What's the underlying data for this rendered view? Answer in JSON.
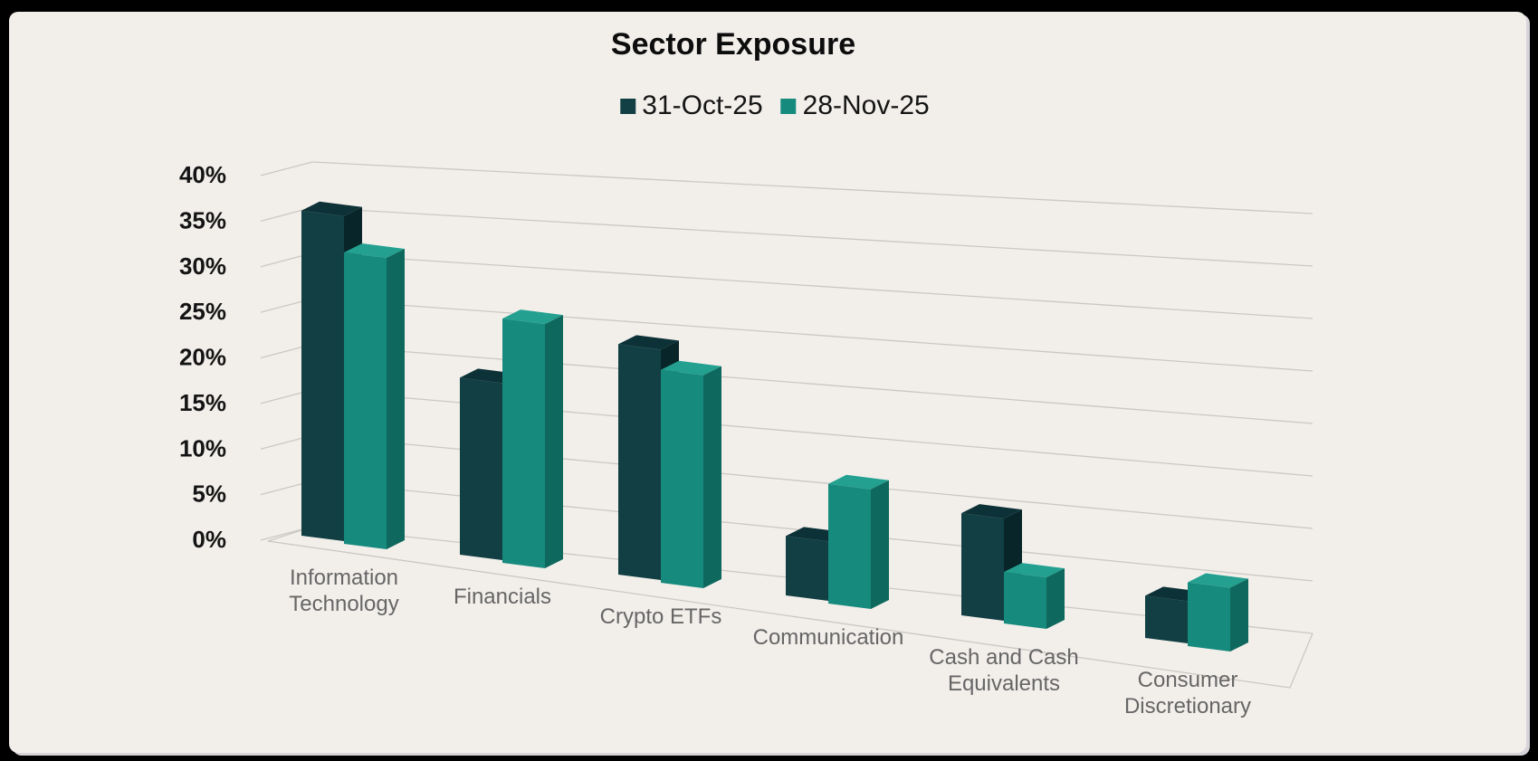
{
  "page": {
    "frame_color": "#000000",
    "card_background": "#f2efeb",
    "gridline_color": "#cbc8c3",
    "axis_label_color": "#141414",
    "category_label_color": "#666666"
  },
  "chart_data": {
    "type": "bar",
    "style": "3d-clustered-column",
    "title": "Sector Exposure",
    "categories": [
      "Information Technology",
      "Financials",
      "Crypto ETFs",
      "Communication",
      "Cash and Cash Equivalents",
      "Consumer Discretionary"
    ],
    "series": [
      {
        "name": "31-Oct-25",
        "color": "#113F44",
        "values": [
          36,
          19,
          24,
          6,
          10,
          4
        ]
      },
      {
        "name": "28-Nov-25",
        "color": "#178A7E",
        "values": [
          32,
          26,
          22,
          12,
          5,
          6
        ]
      }
    ],
    "value_axis": {
      "min": 0,
      "max": 40,
      "format": "percent",
      "ticks": [
        {
          "label": "0%",
          "value": 0
        },
        {
          "label": "5%",
          "value": 5
        },
        {
          "label": "10%",
          "value": 10
        },
        {
          "label": "15%",
          "value": 15
        },
        {
          "label": "20%",
          "value": 20
        },
        {
          "label": "25%",
          "value": 25
        },
        {
          "label": "30%",
          "value": 30
        },
        {
          "label": "35%",
          "value": 35
        },
        {
          "label": "40%",
          "value": 40
        }
      ]
    },
    "legend_position": "top",
    "gridlines": true
  }
}
